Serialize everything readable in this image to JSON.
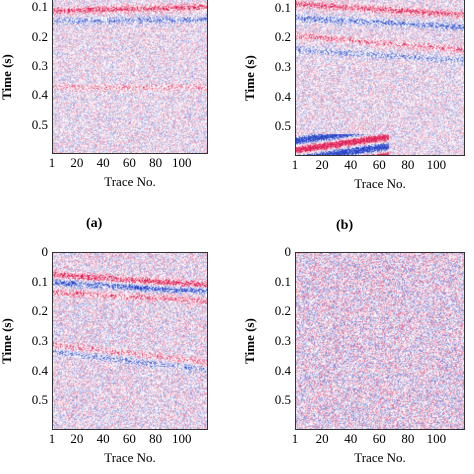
{
  "chart_data": [
    {
      "type": "heatmap",
      "panel": "a",
      "caption": "(a)",
      "xlabel": "Trace No.",
      "ylabel": "Time (s)",
      "xticks": [
        "1",
        "20",
        "40",
        "60",
        "80",
        "100"
      ],
      "yticks": [
        "0.1",
        "0.2",
        "0.3",
        "0.4",
        "0.5"
      ],
      "xlim": [
        1,
        120
      ],
      "ylim": [
        0,
        0.6
      ],
      "colormap": {
        "positive": "#e0245a",
        "negative": "#2845c8",
        "zero": "#ffffff"
      }
    },
    {
      "type": "heatmap",
      "panel": "b",
      "caption": "(b)",
      "xlabel": "Trace No.",
      "ylabel": "Time (s)",
      "xticks": [
        "1",
        "20",
        "40",
        "60",
        "80",
        "100"
      ],
      "yticks": [
        "0.1",
        "0.2",
        "0.3",
        "0.4",
        "0.5"
      ],
      "xlim": [
        1,
        120
      ],
      "ylim": [
        0,
        0.6
      ],
      "colormap": {
        "positive": "#e0245a",
        "negative": "#2845c8",
        "zero": "#ffffff"
      }
    },
    {
      "type": "heatmap",
      "panel": "c",
      "caption": "",
      "xlabel": "Trace No.",
      "ylabel": "Time (s)",
      "xticks": [
        "1",
        "20",
        "40",
        "60",
        "80",
        "100"
      ],
      "yticks": [
        "0",
        "0.1",
        "0.2",
        "0.3",
        "0.4",
        "0.5"
      ],
      "xlim": [
        1,
        120
      ],
      "ylim": [
        0,
        0.6
      ],
      "colormap": {
        "positive": "#e0245a",
        "negative": "#2845c8",
        "zero": "#ffffff"
      }
    },
    {
      "type": "heatmap",
      "panel": "d",
      "caption": "",
      "xlabel": "Trace No.",
      "ylabel": "Time (s)",
      "xticks": [
        "1",
        "20",
        "40",
        "60",
        "80",
        "100"
      ],
      "yticks": [
        "0",
        "0.1",
        "0.2",
        "0.3",
        "0.4",
        "0.5"
      ],
      "xlim": [
        1,
        120
      ],
      "ylim": [
        0,
        0.6
      ],
      "colormap": {
        "positive": "#e0245a",
        "negative": "#2845c8",
        "zero": "#ffffff"
      }
    }
  ]
}
